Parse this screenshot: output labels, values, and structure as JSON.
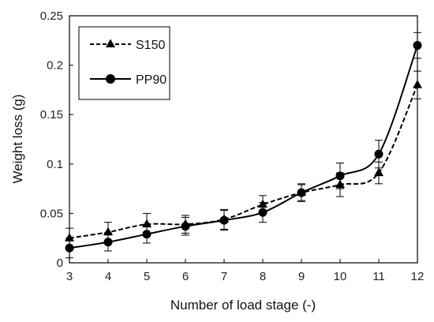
{
  "chart_data": {
    "type": "line",
    "xlabel": "Number of load stage (-)",
    "ylabel": "Weight loss (g)",
    "xlim": [
      3,
      12
    ],
    "ylim": [
      0,
      0.25
    ],
    "xticks": [
      3,
      4,
      5,
      6,
      7,
      8,
      9,
      10,
      11,
      12
    ],
    "yticks": [
      0,
      0.05,
      0.1,
      0.15,
      0.2,
      0.25
    ],
    "ytick_labels": [
      "0",
      "0.05",
      "0.1",
      "0.15",
      "0.2",
      "0.25"
    ],
    "grid": false,
    "legend_position": "top-left",
    "series": [
      {
        "name": "S150",
        "marker": "triangle",
        "line_style": "dashed",
        "color": "#000000",
        "x": [
          3,
          4,
          5,
          6,
          7,
          8,
          9,
          10,
          11,
          12
        ],
        "values": [
          0.025,
          0.031,
          0.039,
          0.039,
          0.044,
          0.059,
          0.071,
          0.079,
          0.091,
          0.18
        ],
        "error": [
          0.01,
          0.01,
          0.011,
          0.009,
          0.01,
          0.009,
          0.008,
          0.012,
          0.011,
          0.014
        ]
      },
      {
        "name": "PP90",
        "marker": "circle",
        "line_style": "solid",
        "color": "#000000",
        "x": [
          3,
          4,
          5,
          6,
          7,
          8,
          9,
          10,
          11,
          12
        ],
        "values": [
          0.015,
          0.021,
          0.029,
          0.037,
          0.043,
          0.051,
          0.071,
          0.088,
          0.11,
          0.22
        ],
        "error": [
          0.01,
          0.009,
          0.009,
          0.009,
          0.01,
          0.01,
          0.009,
          0.013,
          0.014,
          0.013
        ]
      }
    ]
  }
}
